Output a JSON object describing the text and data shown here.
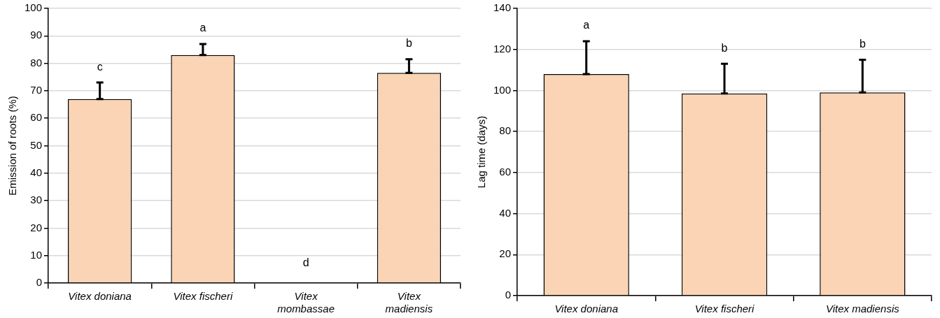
{
  "chart_data": [
    {
      "type": "bar",
      "ylabel": "Emission of roots (%)",
      "categories": [
        "Vitex doniana",
        "Vitex fischeri",
        "Vitex mombassae",
        "Vitex madiensis"
      ],
      "values": [
        67,
        83,
        0,
        76.5
      ],
      "color": "#fad4b4",
      "errors": [
        [
          67,
          73
        ],
        [
          83,
          87
        ],
        null,
        [
          76.5,
          81.5
        ]
      ],
      "ylim": [
        0,
        100
      ],
      "yticks": [
        0,
        10,
        20,
        30,
        40,
        50,
        60,
        70,
        80,
        90,
        100
      ],
      "grid": "y",
      "annotations": [
        "c",
        "a",
        "d",
        "b"
      ]
    },
    {
      "type": "bar",
      "ylabel": "Lag time (days)",
      "categories": [
        "Vitex doniana",
        "Vitex fischeri",
        "Vitex madiensis"
      ],
      "values": [
        108,
        98.5,
        99
      ],
      "color": "#fad4b4",
      "errors": [
        [
          108,
          124
        ],
        [
          98.5,
          113
        ],
        [
          99,
          115
        ]
      ],
      "ylim": [
        0,
        140
      ],
      "yticks": [
        0,
        20,
        40,
        60,
        80,
        100,
        120,
        140
      ],
      "grid": "y",
      "annotations": [
        "a",
        "b",
        "b"
      ]
    }
  ]
}
